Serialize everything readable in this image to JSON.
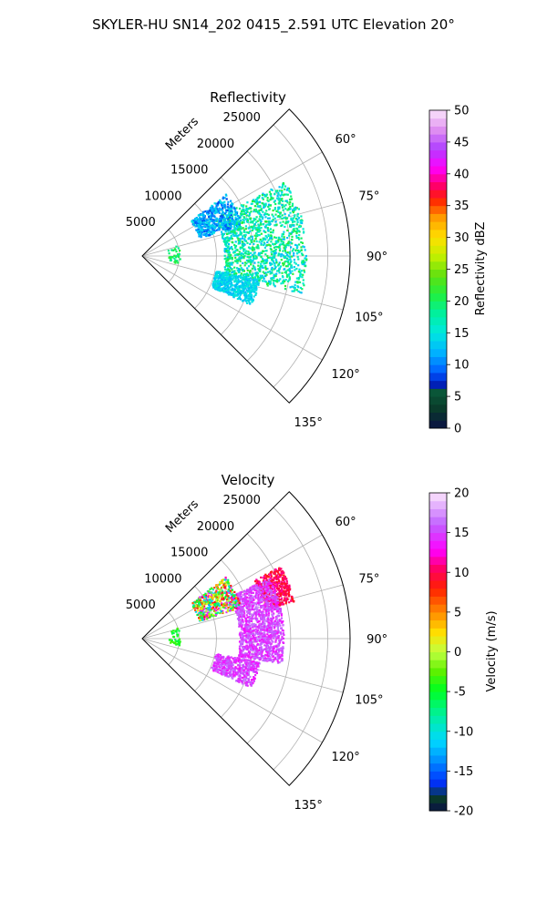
{
  "figure": {
    "suptitle": "SKYLER-HU  SN14_202  0415_2.591 UTC Elevation 20°"
  },
  "chart_data": [
    {
      "type": "heatmap",
      "projection": "polar-sector",
      "title": "Reflectivity",
      "radial_label": "Meters",
      "radial_ticks": [
        "5000",
        "10000",
        "15000",
        "20000",
        "25000"
      ],
      "radial_range": [
        0,
        28000
      ],
      "azimuth_ticks": [
        "60°",
        "75°",
        "90°",
        "105°",
        "120°",
        "135°"
      ],
      "azimuth_range_deg": [
        45,
        135
      ],
      "grid": true,
      "colorbar": {
        "label": "Reflectivity dBZ",
        "ticks": [
          "0",
          "5",
          "10",
          "15",
          "20",
          "25",
          "30",
          "35",
          "40",
          "45",
          "50"
        ],
        "range": [
          0,
          50
        ],
        "colormap": "pyart_HomeyerRainbow"
      },
      "echo_regions": [
        {
          "name": "main-band",
          "az_range": [
            62,
            103
          ],
          "r_range": [
            11000,
            22000
          ],
          "dbz_range": [
            12,
            22
          ]
        },
        {
          "name": "western-cluster",
          "az_range": [
            53,
            72
          ],
          "r_range": [
            8000,
            14000
          ],
          "dbz_range": [
            8,
            15
          ]
        },
        {
          "name": "southern-cluster",
          "az_range": [
            101,
            114
          ],
          "r_range": [
            10000,
            16000
          ],
          "dbz_range": [
            12,
            16
          ]
        },
        {
          "name": "near-clutter",
          "az_range": [
            72,
            101
          ],
          "r_range": [
            3500,
            5000
          ],
          "dbz_range": [
            18,
            22
          ]
        }
      ]
    },
    {
      "type": "heatmap",
      "projection": "polar-sector",
      "title": "Velocity",
      "radial_label": "Meters",
      "radial_ticks": [
        "5000",
        "10000",
        "15000",
        "20000",
        "25000"
      ],
      "radial_range": [
        0,
        28000
      ],
      "azimuth_ticks": [
        "60°",
        "75°",
        "90°",
        "105°",
        "120°",
        "135°"
      ],
      "azimuth_range_deg": [
        45,
        135
      ],
      "grid": true,
      "colorbar": {
        "label": "Velocity (m/s)",
        "ticks": [
          "-20",
          "-15",
          "-10",
          "-5",
          "0",
          "5",
          "10",
          "15",
          "20"
        ],
        "range": [
          -20,
          20
        ],
        "colormap": "pyart_BuDRd18"
      },
      "echo_regions": [
        {
          "name": "outer-edge",
          "az_range": [
            62,
            76
          ],
          "r_range": [
            17000,
            21000
          ],
          "vel_range": [
            8,
            12
          ]
        },
        {
          "name": "main-band",
          "az_range": [
            64,
            100
          ],
          "r_range": [
            13000,
            19000
          ],
          "vel_range": [
            13,
            17
          ]
        },
        {
          "name": "western-cluster",
          "az_range": [
            53,
            72
          ],
          "r_range": [
            8000,
            14000
          ],
          "vel_range": [
            -13,
            15
          ]
        },
        {
          "name": "southern-cluster",
          "az_range": [
            101,
            114
          ],
          "r_range": [
            10000,
            16000
          ],
          "vel_range": [
            13,
            17
          ]
        },
        {
          "name": "near-clutter",
          "az_range": [
            72,
            101
          ],
          "r_range": [
            3500,
            5000
          ],
          "vel_range": [
            -6,
            -3
          ]
        }
      ]
    }
  ]
}
